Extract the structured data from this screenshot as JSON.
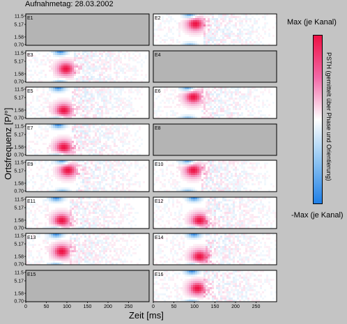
{
  "header": {
    "title": "Aufnahmetag: 28.03.2002"
  },
  "axes": {
    "ylabel": "Ortsfrequenz [P/°]",
    "xlabel": "Zeit [ms]"
  },
  "colorbar": {
    "max_label": "Max (je Kanal)",
    "min_label": "-Max (je Kanal)",
    "caption": "PSTH (gemittelt über Phase und Orientierung)",
    "colors": [
      "#ee1144",
      "#f26aa8",
      "#ffffff",
      "#8ec4f2",
      "#1f7fe6"
    ]
  },
  "chart_data": {
    "type": "heatmap",
    "title": "Aufnahmetag: 28.03.2002",
    "xlabel": "Zeit [ms]",
    "ylabel": "Ortsfrequenz [P/°]",
    "xlim": [
      0,
      300
    ],
    "x_ticks": [
      0,
      50,
      100,
      150,
      200,
      250
    ],
    "y_ticks": [
      "11.5",
      "5.17",
      "1.58",
      "0.70"
    ],
    "y_scale": "log",
    "panels": [
      {
        "name": "E1",
        "empty": true
      },
      {
        "name": "E2",
        "empty": false,
        "peak_time_ms": 100,
        "peak_sf": 5.17
      },
      {
        "name": "E3",
        "empty": false,
        "peak_time_ms": 95,
        "peak_sf": 2.5
      },
      {
        "name": "E4",
        "empty": true
      },
      {
        "name": "E5",
        "empty": false,
        "peak_time_ms": 90,
        "peak_sf": 1.58
      },
      {
        "name": "E6",
        "empty": false,
        "peak_time_ms": 95,
        "peak_sf": 5.17
      },
      {
        "name": "E7",
        "empty": false,
        "peak_time_ms": 90,
        "peak_sf": 1.58
      },
      {
        "name": "E8",
        "empty": true
      },
      {
        "name": "E9",
        "empty": false,
        "peak_time_ms": 100,
        "peak_sf": 5.17
      },
      {
        "name": "E10",
        "empty": false,
        "peak_time_ms": 95,
        "peak_sf": 5.17
      },
      {
        "name": "E11",
        "empty": false,
        "peak_time_ms": 85,
        "peak_sf": 1.58
      },
      {
        "name": "E12",
        "empty": false,
        "peak_time_ms": 110,
        "peak_sf": 1.58
      },
      {
        "name": "E13",
        "empty": false,
        "peak_time_ms": 85,
        "peak_sf": 2.5
      },
      {
        "name": "E14",
        "empty": false,
        "peak_time_ms": 110,
        "peak_sf": 1.58
      },
      {
        "name": "E15",
        "empty": true
      },
      {
        "name": "E16",
        "empty": false,
        "peak_time_ms": 105,
        "peak_sf": 2.5
      }
    ]
  }
}
